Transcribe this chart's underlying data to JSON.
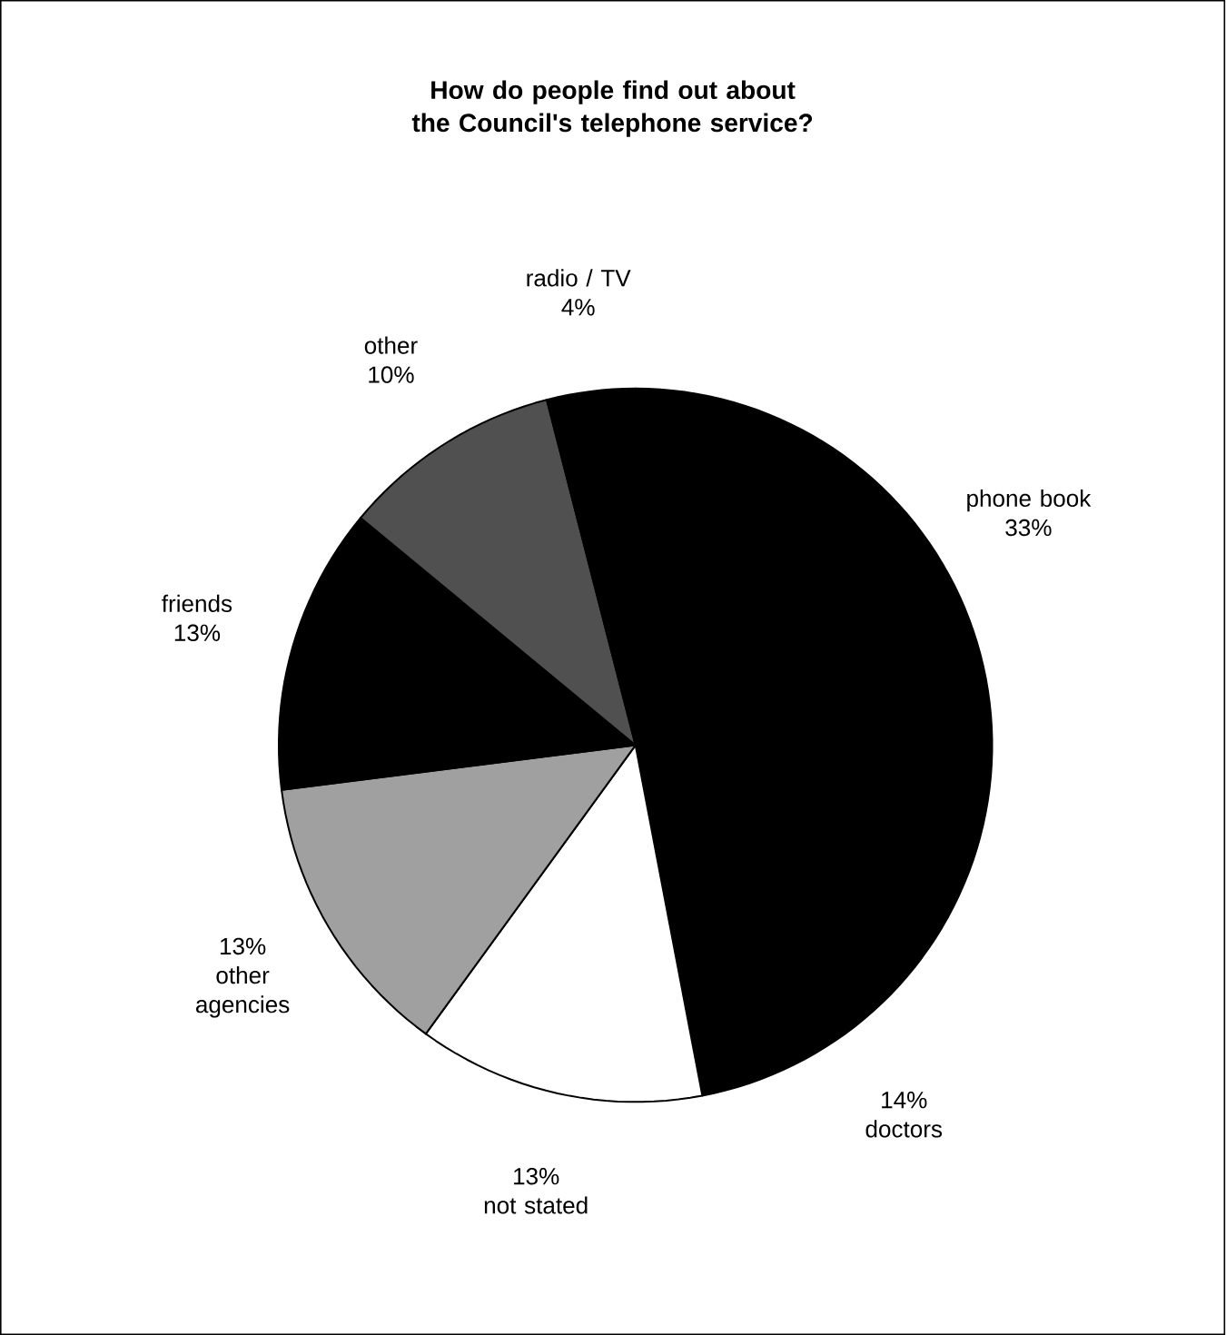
{
  "chart_data": {
    "type": "pie",
    "title": "How do people find out about the Council's telephone service?",
    "categories": [
      "phone book",
      "doctors",
      "not stated",
      "other agencies",
      "friends",
      "other",
      "radio / TV"
    ],
    "values": [
      33,
      14,
      13,
      13,
      13,
      10,
      4
    ],
    "value_labels": [
      "33%",
      "14%",
      "13%",
      "13%",
      "13%",
      "10%",
      "4%"
    ],
    "colors": [
      "#000000",
      "#000000",
      "#ffffff",
      "#a0a0a0",
      "#000000",
      "#505050",
      "#000000"
    ]
  }
}
